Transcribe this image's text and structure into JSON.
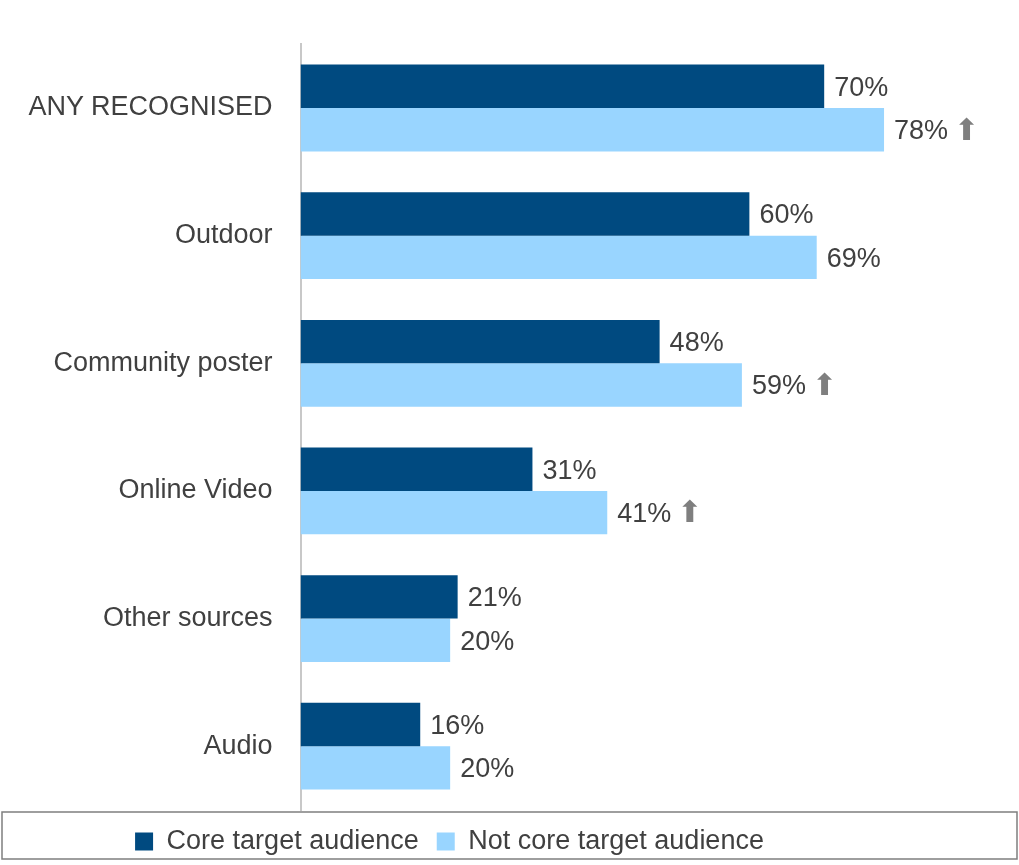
{
  "chart_data": {
    "type": "bar",
    "orientation": "horizontal",
    "categories": [
      "ANY RECOGNISED",
      "Outdoor",
      "Community poster",
      "Online Video",
      "Other sources",
      "Audio"
    ],
    "series": [
      {
        "name": "Core target audience",
        "color": "#004a80",
        "values": [
          70,
          60,
          48,
          31,
          21,
          16
        ],
        "value_labels": [
          "70%",
          "60%",
          "48%",
          "31%",
          "21%",
          "16%"
        ]
      },
      {
        "name": "Not core target audience",
        "color": "#99d5ff",
        "values": [
          78,
          69,
          59,
          41,
          20,
          20
        ],
        "value_labels": [
          "78%",
          "69%",
          "59%",
          "41%",
          "20%",
          "20%"
        ]
      }
    ],
    "annotations": [
      {
        "text": "⬆",
        "x": 78,
        "y": "ANY RECOGNISED"
      },
      {
        "text": "⬆",
        "x": 59,
        "y": "Community poster"
      },
      {
        "text": "⬆",
        "x": 41,
        "y": "Online Video"
      }
    ],
    "legend": "bottom",
    "grid": false,
    "tick_labels": "y"
  }
}
